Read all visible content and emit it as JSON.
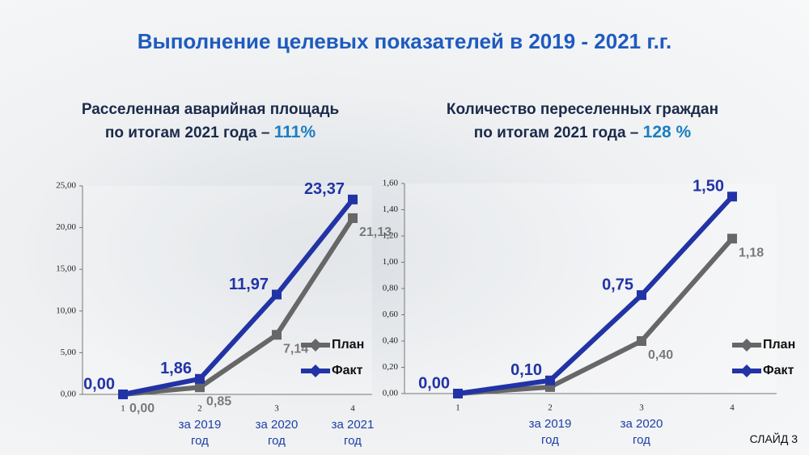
{
  "title": "Выполнение целевых показателей в 2019 - 2021 г.г.",
  "slide_label": "СЛАЙД 3",
  "chart_data": [
    {
      "type": "line",
      "title_lines": [
        "Расселенная аварийная площадь",
        "по итогам 2021 года –"
      ],
      "title_highlight": "111%",
      "categories": [
        "1",
        "2",
        "3",
        "4"
      ],
      "category_notes": [
        null,
        "за 2019 год",
        "за 2020 год",
        "за 2021 год"
      ],
      "ylim": [
        0,
        25
      ],
      "yticks": [
        {
          "value": 0,
          "label": "0,00"
        },
        {
          "value": 5,
          "label": "5,00"
        },
        {
          "value": 10,
          "label": "10,00"
        },
        {
          "value": 15,
          "label": "15,00"
        },
        {
          "value": 20,
          "label": "20,00"
        },
        {
          "value": 25,
          "label": "25,00"
        }
      ],
      "legend": "right",
      "series": [
        {
          "name": "План",
          "color": "#676767",
          "values": [
            0,
            0.85,
            7.14,
            21.13
          ],
          "value_labels": [
            "0,00",
            "0,85",
            "7,14",
            "21,13"
          ]
        },
        {
          "name": "Факт",
          "color": "#2233a6",
          "values": [
            0,
            1.86,
            11.97,
            23.37
          ],
          "value_labels": [
            "0,00",
            "1,86",
            "11,97",
            "23,37"
          ]
        }
      ]
    },
    {
      "type": "line",
      "title_lines": [
        "Количество переселенных граждан",
        "по итогам 2021 года –"
      ],
      "title_highlight": "128 %",
      "categories": [
        "1",
        "2",
        "3",
        "4"
      ],
      "category_notes": [
        null,
        "за 2019 год",
        "за 2020 год",
        null
      ],
      "ylim": [
        0,
        1.6
      ],
      "yticks": [
        {
          "value": 0,
          "label": "0,00"
        },
        {
          "value": 0.2,
          "label": "0,20"
        },
        {
          "value": 0.4,
          "label": "0,40"
        },
        {
          "value": 0.6,
          "label": "0,60"
        },
        {
          "value": 0.8,
          "label": "0,80"
        },
        {
          "value": 1,
          "label": "1,00"
        },
        {
          "value": 1.2,
          "label": "1,20"
        },
        {
          "value": 1.4,
          "label": "1,40"
        },
        {
          "value": 1.6,
          "label": "1,60"
        }
      ],
      "legend": "right",
      "series": [
        {
          "name": "План",
          "color": "#676767",
          "values": [
            0,
            0.05,
            0.4,
            1.18
          ],
          "value_labels": [
            null,
            null,
            "0,40",
            "1,18"
          ]
        },
        {
          "name": "Факт",
          "color": "#2233a6",
          "values": [
            0,
            0.1,
            0.75,
            1.5
          ],
          "value_labels": [
            "0,00",
            "0,10",
            "0,75",
            "1,50"
          ]
        }
      ]
    }
  ]
}
